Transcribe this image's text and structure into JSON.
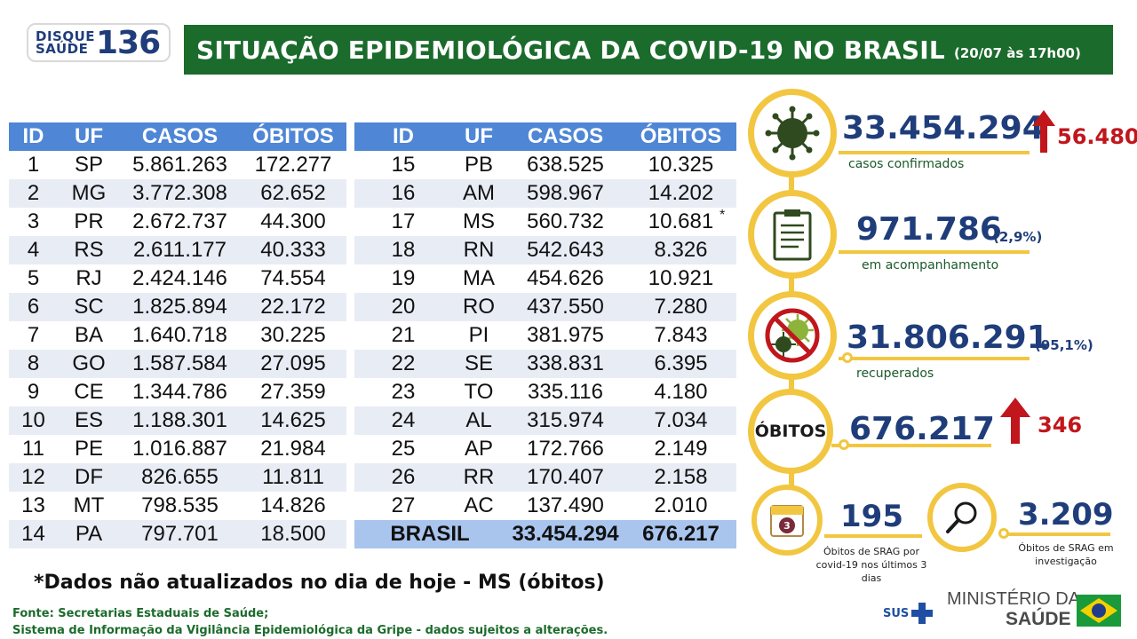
{
  "header": {
    "logo_text": "DISQUE SAÚDE",
    "logo_number": "136",
    "title": "SITUAÇÃO EPIDEMIOLÓGICA DA COVID-19 NO BRASIL",
    "date": "(20/07 às 17h00)"
  },
  "table": {
    "columns": [
      "ID",
      "UF",
      "CASOS",
      "ÓBITOS"
    ],
    "left_rows": [
      [
        "1",
        "SP",
        "5.861.263",
        "172.277"
      ],
      [
        "2",
        "MG",
        "3.772.308",
        "62.652"
      ],
      [
        "3",
        "PR",
        "2.672.737",
        "44.300"
      ],
      [
        "4",
        "RS",
        "2.611.177",
        "40.333"
      ],
      [
        "5",
        "RJ",
        "2.424.146",
        "74.554"
      ],
      [
        "6",
        "SC",
        "1.825.894",
        "22.172"
      ],
      [
        "7",
        "BA",
        "1.640.718",
        "30.225"
      ],
      [
        "8",
        "GO",
        "1.587.584",
        "27.095"
      ],
      [
        "9",
        "CE",
        "1.344.786",
        "27.359"
      ],
      [
        "10",
        "ES",
        "1.188.301",
        "14.625"
      ],
      [
        "11",
        "PE",
        "1.016.887",
        "21.984"
      ],
      [
        "12",
        "DF",
        "826.655",
        "11.811"
      ],
      [
        "13",
        "MT",
        "798.535",
        "14.826"
      ],
      [
        "14",
        "PA",
        "797.701",
        "18.500"
      ]
    ],
    "right_rows": [
      [
        "15",
        "PB",
        "638.525",
        "10.325"
      ],
      [
        "16",
        "AM",
        "598.967",
        "14.202"
      ],
      [
        "17",
        "MS",
        "560.732",
        "10.681"
      ],
      [
        "18",
        "RN",
        "542.643",
        "8.326"
      ],
      [
        "19",
        "MA",
        "454.626",
        "10.921"
      ],
      [
        "20",
        "RO",
        "437.550",
        "7.280"
      ],
      [
        "21",
        "PI",
        "381.975",
        "7.843"
      ],
      [
        "22",
        "SE",
        "338.831",
        "6.395"
      ],
      [
        "23",
        "TO",
        "335.116",
        "4.180"
      ],
      [
        "24",
        "AL",
        "315.974",
        "7.034"
      ],
      [
        "25",
        "AP",
        "172.766",
        "2.149"
      ],
      [
        "26",
        "RR",
        "170.407",
        "2.158"
      ],
      [
        "27",
        "AC",
        "137.490",
        "2.010"
      ]
    ],
    "asterisk": "*",
    "total": {
      "label": "BRASIL",
      "casos": "33.454.294",
      "obitos": "676.217"
    }
  },
  "notes": {
    "footnote": "*Dados não atualizados no dia de hoje - MS (óbitos)",
    "source_1": "Fonte: Secretarias Estaduais de Saúde;",
    "source_2": "Sistema de Informação da Vigilância Epidemiológica da Gripe - dados sujeitos a alterações."
  },
  "stats": {
    "confirmed": {
      "value": "33.454.294",
      "label": "casos confirmados",
      "increase": "56.480",
      "icon": "virus-icon"
    },
    "monitoring": {
      "value": "971.786",
      "pct": "(2,9%)",
      "label": "em acompanhamento",
      "icon": "clipboard-icon"
    },
    "recovered": {
      "value": "31.806.291",
      "pct": "(95,1%)",
      "label": "recuperados",
      "icon": "no-virus-icon"
    },
    "deaths": {
      "word": "ÓBITOS",
      "value": "676.217",
      "increase": "346"
    },
    "srag_recent": {
      "value": "195",
      "label": "Óbitos de SRAG por covid-19 nos últimos 3 dias",
      "icon": "calendar-icon",
      "icon_number": "3"
    },
    "srag_investigation": {
      "value": "3.209",
      "label": "Óbitos de SRAG em investigação",
      "icon": "magnifier-icon"
    }
  },
  "footer": {
    "sus": "SUS",
    "ministerio": "MINISTÉRIO DA",
    "saude": "SAÚDE",
    "flag": "brazil-flag"
  },
  "colors": {
    "green": "#1b6b2c",
    "blue_header": "#4f86d6",
    "navy": "#1f3d7a",
    "yellow": "#f2c640",
    "red": "#c0161c"
  }
}
